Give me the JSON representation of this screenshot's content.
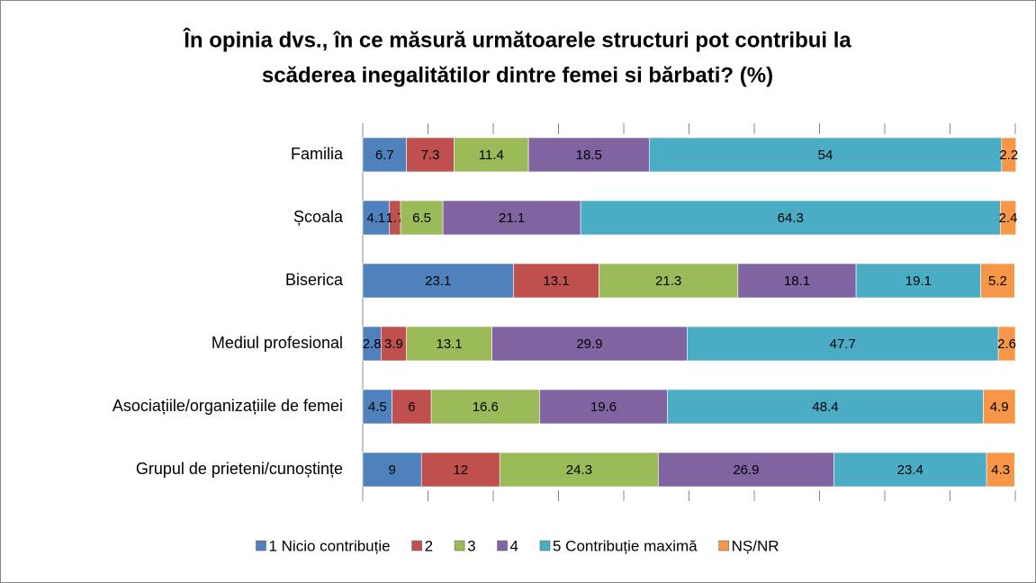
{
  "chart_data": {
    "type": "stacked_bar_horizontal",
    "title": [
      "În opinia dvs., în ce măsură următoarele structuri pot contribui la",
      "scăderea inegalitătilor dintre femei si bărbati? (%)"
    ],
    "categories": [
      "Familia",
      "Școala",
      "Biserica",
      "Mediul profesional",
      "Asociațiile/organizațiile de femei",
      "Grupul de prieteni/cunoștințe"
    ],
    "series": [
      {
        "name": "1 Nicio contribuție",
        "color": "#4f81bd",
        "values": [
          6.7,
          4.1,
          23.1,
          2.8,
          4.5,
          9
        ]
      },
      {
        "name": "2",
        "color": "#c0504d",
        "values": [
          7.3,
          1.7,
          13.1,
          3.9,
          6,
          12
        ]
      },
      {
        "name": "3",
        "color": "#9bbb59",
        "values": [
          11.4,
          6.5,
          21.3,
          13.1,
          16.6,
          24.3
        ]
      },
      {
        "name": "4",
        "color": "#8064a2",
        "values": [
          18.5,
          21.1,
          18.1,
          29.9,
          19.6,
          26.9
        ]
      },
      {
        "name": "5 Contribuție maximă",
        "color": "#4bacc6",
        "values": [
          54,
          64.3,
          19.1,
          47.7,
          48.4,
          23.4
        ]
      },
      {
        "name": "NȘ/NR",
        "color": "#f79646",
        "values": [
          2.2,
          2.4,
          5.2,
          2.6,
          4.9,
          4.3
        ]
      }
    ],
    "xlim": [
      0,
      100
    ],
    "xticks": [
      0,
      10,
      20,
      30,
      40,
      50,
      60,
      70,
      80,
      90,
      100
    ]
  }
}
